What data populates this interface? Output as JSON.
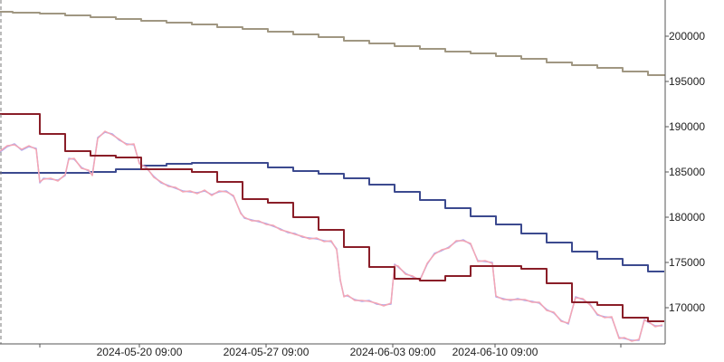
{
  "chart_data": {
    "type": "line",
    "x_tick_labels": [
      "2024-05-20 09:00",
      "2024-05-27 09:00",
      "2024-06-03 09:00",
      "2024-06-10 09:00"
    ],
    "y_tick_labels": [
      "170000",
      "175000",
      "180000",
      "185000",
      "190000",
      "195000",
      "200000"
    ],
    "ylim": [
      166000,
      204000
    ],
    "xlim": [
      0,
      787
    ],
    "y_ticks": [
      170000,
      175000,
      180000,
      185000,
      190000,
      195000,
      200000
    ],
    "x_ticks": [
      44,
      154,
      294,
      434,
      547,
      686
    ],
    "x_tick_label_positions": [
      154,
      294,
      434,
      547
    ],
    "grid": false,
    "series": [
      {
        "color": "#a09782",
        "step": true,
        "x": [
          0,
          14,
          44,
          72,
          100,
          128,
          156,
          184,
          212,
          240,
          268,
          296,
          324,
          352,
          380,
          408,
          436,
          464,
          492,
          520,
          548,
          576,
          604,
          632,
          660,
          688,
          716,
          734
        ],
        "values": [
          202700,
          202600,
          202500,
          202300,
          202100,
          201900,
          201700,
          201500,
          201300,
          201000,
          200800,
          200500,
          200200,
          199900,
          199500,
          199200,
          198900,
          198600,
          198300,
          198100,
          197800,
          197500,
          197100,
          196800,
          196500,
          196100,
          195700,
          195600
        ]
      },
      {
        "color": "#3c4a8f",
        "step": true,
        "x": [
          0,
          14,
          44,
          72,
          100,
          128,
          156,
          184,
          212,
          240,
          268,
          296,
          324,
          352,
          380,
          408,
          436,
          464,
          492,
          520,
          548,
          576,
          604,
          632,
          660,
          688,
          716,
          734
        ],
        "values": [
          184900,
          184900,
          184900,
          184900,
          185000,
          185300,
          185700,
          185900,
          186000,
          186000,
          186000,
          185500,
          185100,
          184800,
          184300,
          183600,
          182800,
          181900,
          181000,
          180100,
          179200,
          178200,
          177200,
          176200,
          175400,
          174700,
          174000,
          174000
        ]
      },
      {
        "color": "#8a1e28",
        "step": true,
        "x": [
          0,
          44,
          72,
          100,
          128,
          156,
          212,
          240,
          268,
          296,
          324,
          352,
          380,
          408,
          436,
          464,
          492,
          520,
          548,
          576,
          604,
          632,
          660,
          688,
          716,
          734
        ],
        "values": [
          191400,
          189200,
          187300,
          186800,
          186600,
          185300,
          185000,
          183900,
          182000,
          181600,
          180000,
          178600,
          176700,
          174500,
          173200,
          173000,
          173500,
          174600,
          174600,
          174300,
          172700,
          170600,
          170300,
          168900,
          168500,
          168500
        ]
      },
      {
        "color": "#aaaaf0",
        "step": false,
        "x": [
          0,
          8,
          16,
          24,
          32,
          40,
          44,
          48,
          56,
          64,
          72,
          76,
          82,
          90,
          98,
          102,
          108,
          116,
          124,
          132,
          140,
          148,
          154,
          162,
          170,
          178,
          186,
          194,
          202,
          210,
          218,
          226,
          234,
          242,
          250,
          258,
          266,
          270,
          278,
          286,
          294,
          302,
          310,
          318,
          326,
          334,
          342,
          350,
          358,
          366,
          372,
          376,
          380,
          384,
          392,
          400,
          408,
          416,
          424,
          432,
          436,
          440,
          448,
          456,
          464,
          472,
          480,
          488,
          496,
          504,
          512,
          520,
          528,
          536,
          544,
          548,
          556,
          564,
          572,
          580,
          588,
          596,
          604,
          612,
          620,
          628,
          636,
          644,
          652,
          660,
          668,
          676,
          684,
          690,
          698,
          706,
          712,
          716,
          724,
          732
        ],
        "values": [
          187200,
          187800,
          188100,
          187400,
          187800,
          187600,
          183800,
          184300,
          184200,
          184100,
          184600,
          186500,
          186400,
          185500,
          185100,
          184700,
          188800,
          189400,
          189200,
          188500,
          188100,
          188000,
          186000,
          185400,
          184500,
          183800,
          183500,
          183200,
          182900,
          182800,
          182700,
          182900,
          182500,
          182800,
          182900,
          182300,
          180500,
          179900,
          179700,
          179500,
          179300,
          179000,
          178700,
          178300,
          178200,
          177800,
          177700,
          177600,
          177400,
          177300,
          176500,
          173000,
          171300,
          171300,
          170900,
          170700,
          170800,
          170400,
          170300,
          170400,
          174800,
          174500,
          173800,
          173400,
          173100,
          174800,
          176000,
          176300,
          176700,
          177300,
          177500,
          177000,
          175200,
          175100,
          175000,
          171200,
          171000,
          170800,
          171000,
          170800,
          170700,
          170500,
          169800,
          169400,
          168600,
          168200,
          171200,
          170900,
          170400,
          169200,
          169000,
          168900,
          166700,
          166600,
          166400,
          166400,
          168700,
          168400,
          168000,
          168000
        ]
      },
      {
        "color": "#f4a6b4",
        "step": false,
        "x": [
          0,
          8,
          16,
          24,
          32,
          40,
          44,
          48,
          56,
          64,
          72,
          76,
          82,
          90,
          98,
          102,
          108,
          116,
          124,
          132,
          140,
          148,
          154,
          162,
          170,
          178,
          186,
          194,
          202,
          210,
          218,
          226,
          234,
          242,
          250,
          258,
          266,
          270,
          278,
          286,
          294,
          302,
          310,
          318,
          326,
          334,
          342,
          350,
          358,
          366,
          372,
          376,
          380,
          384,
          392,
          400,
          408,
          416,
          424,
          432,
          436,
          440,
          448,
          456,
          464,
          472,
          480,
          488,
          496,
          504,
          512,
          520,
          528,
          536,
          544,
          548,
          556,
          564,
          572,
          580,
          588,
          596,
          604,
          612,
          620,
          628,
          636,
          644,
          652,
          660,
          668,
          676,
          684,
          690,
          698,
          706,
          712,
          716,
          724,
          732
        ],
        "values": [
          187300,
          187900,
          188000,
          187500,
          187900,
          187500,
          183900,
          184200,
          184300,
          184000,
          184700,
          186400,
          186500,
          185400,
          185200,
          184600,
          188700,
          189500,
          189100,
          188600,
          188000,
          188100,
          185900,
          185500,
          184400,
          183900,
          183400,
          183300,
          182800,
          182900,
          182600,
          183000,
          182400,
          182900,
          182800,
          182400,
          180400,
          180000,
          179600,
          179600,
          179200,
          179100,
          178600,
          178400,
          178100,
          177900,
          177600,
          177700,
          177300,
          177400,
          176400,
          173100,
          171200,
          171400,
          170800,
          170800,
          170700,
          170500,
          170200,
          170500,
          174700,
          174600,
          173700,
          173500,
          173000,
          174900,
          175900,
          176400,
          176600,
          177400,
          177400,
          177100,
          175100,
          175200,
          174900,
          171300,
          170900,
          170900,
          170900,
          170900,
          170600,
          170600,
          169700,
          169500,
          168500,
          168300,
          171100,
          171000,
          170300,
          169300,
          168900,
          169000,
          166600,
          166700,
          166300,
          166500,
          168600,
          168500,
          167900,
          168100
        ]
      }
    ]
  }
}
